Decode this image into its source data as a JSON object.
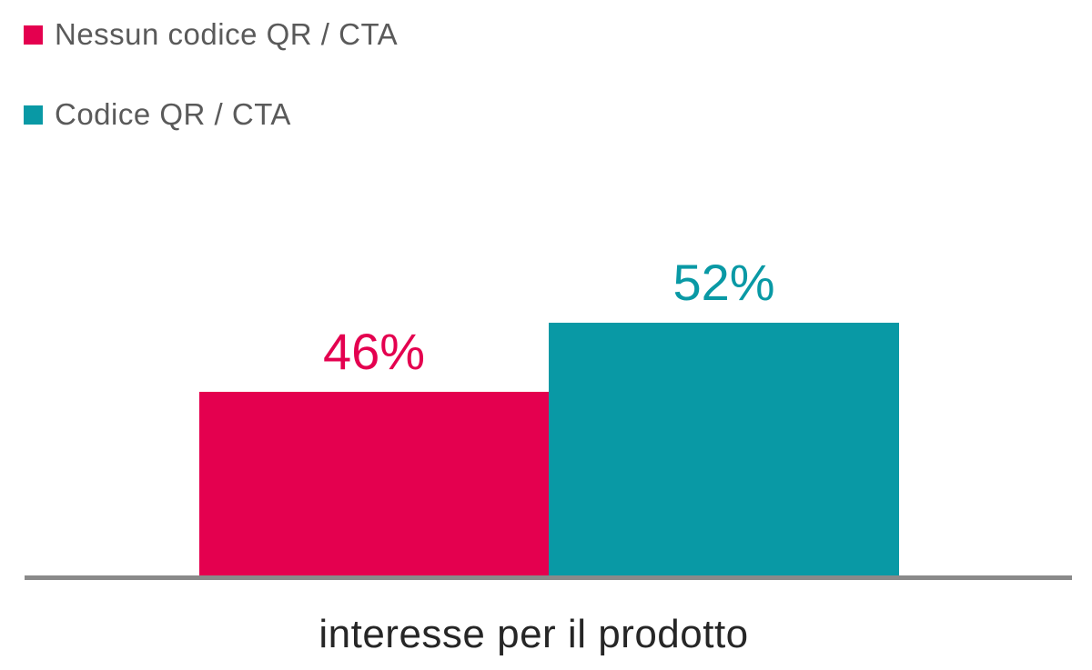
{
  "chart_data": {
    "type": "bar",
    "categories": [
      "interesse per il prodotto"
    ],
    "series": [
      {
        "name": "Nessun codice QR / CTA",
        "values": [
          46
        ],
        "label": "46%",
        "color": "#e4004f"
      },
      {
        "name": "Codice QR / CTA",
        "values": [
          52
        ],
        "label": "52%",
        "color": "#0999a5"
      }
    ],
    "title": "",
    "xlabel": "interesse per il prodotto",
    "ylabel": "",
    "ylim": [
      30,
      60
    ],
    "grid": false,
    "y_axis_visible": false,
    "legend_position": "top-left",
    "value_labels": [
      "46%",
      "52%"
    ]
  },
  "colors": {
    "bar_pink": "#e4004f",
    "bar_teal": "#0999a5",
    "axis_line": "#8a8a8a",
    "legend_text": "#5a5a5a",
    "title_text": "#262626",
    "background": "#ffffff"
  }
}
